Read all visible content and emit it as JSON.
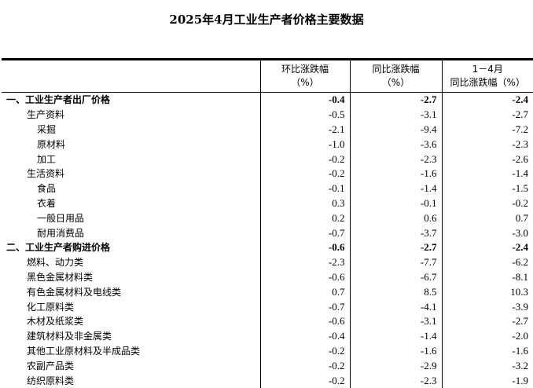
{
  "title": "2025年4月工业生产者价格主要数据",
  "headers": [
    {
      "line1": "",
      "line2": ""
    },
    {
      "line1": "环比涨跌幅",
      "line2": "（%）"
    },
    {
      "line1": "同比涨跌幅",
      "line2": "（%）"
    },
    {
      "line1": "1－4月",
      "line2": "同比涨跌幅（%）"
    }
  ],
  "rows": [
    {
      "label": "一、工业生产者出厂价格",
      "level": 0,
      "mom": "-0.4",
      "yoy": "-2.7",
      "ytd": "-2.4"
    },
    {
      "label": "生产资料",
      "level": 1,
      "mom": "-0.5",
      "yoy": "-3.1",
      "ytd": "-2.7"
    },
    {
      "label": "采掘",
      "level": 2,
      "mom": "-2.1",
      "yoy": "-9.4",
      "ytd": "-7.2"
    },
    {
      "label": "原材料",
      "level": 2,
      "mom": "-1.0",
      "yoy": "-3.6",
      "ytd": "-2.3"
    },
    {
      "label": "加工",
      "level": 2,
      "mom": "-0.2",
      "yoy": "-2.3",
      "ytd": "-2.6"
    },
    {
      "label": "生活资料",
      "level": 1,
      "mom": "-0.2",
      "yoy": "-1.6",
      "ytd": "-1.4"
    },
    {
      "label": "食品",
      "level": 2,
      "mom": "-0.1",
      "yoy": "-1.4",
      "ytd": "-1.5"
    },
    {
      "label": "衣着",
      "level": 2,
      "mom": "0.3",
      "yoy": "-0.1",
      "ytd": "-0.2"
    },
    {
      "label": "一般日用品",
      "level": 2,
      "mom": "0.2",
      "yoy": "0.6",
      "ytd": "0.7"
    },
    {
      "label": "耐用消费品",
      "level": 2,
      "mom": "-0.7",
      "yoy": "-3.7",
      "ytd": "-3.0"
    },
    {
      "label": "二、工业生产者购进价格",
      "level": 0,
      "mom": "-0.6",
      "yoy": "-2.7",
      "ytd": "-2.4"
    },
    {
      "label": "燃料、动力类",
      "level": 1,
      "mom": "-2.3",
      "yoy": "-7.7",
      "ytd": "-6.2"
    },
    {
      "label": "黑色金属材料类",
      "level": 1,
      "mom": "-0.6",
      "yoy": "-6.7",
      "ytd": "-8.1"
    },
    {
      "label": "有色金属材料及电线类",
      "level": 1,
      "mom": "0.7",
      "yoy": "8.5",
      "ytd": "10.3"
    },
    {
      "label": "化工原料类",
      "level": 1,
      "mom": "-0.7",
      "yoy": "-4.1",
      "ytd": "-3.9"
    },
    {
      "label": "木材及纸浆类",
      "level": 1,
      "mom": "-0.6",
      "yoy": "-3.1",
      "ytd": "-2.7"
    },
    {
      "label": "建筑材料及非金属类",
      "level": 1,
      "mom": "-0.4",
      "yoy": "-1.4",
      "ytd": "-2.0"
    },
    {
      "label": "其他工业原材料及半成品类",
      "level": 1,
      "mom": "-0.2",
      "yoy": "-1.6",
      "ytd": "-1.6"
    },
    {
      "label": "农副产品类",
      "level": 1,
      "mom": "-0.2",
      "yoy": "-2.9",
      "ytd": "-3.2"
    },
    {
      "label": "纺织原料类",
      "level": 1,
      "mom": "-0.2",
      "yoy": "-2.3",
      "ytd": "-1.9"
    }
  ]
}
